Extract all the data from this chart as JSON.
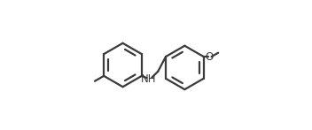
{
  "background_color": "#ffffff",
  "line_color": "#3a3a3a",
  "line_width": 1.6,
  "text_color": "#3a3a3a",
  "nh_fontsize": 8.5,
  "o_fontsize": 8.5,
  "figsize": [
    3.52,
    1.47
  ],
  "dpi": 100,
  "lcx": 0.245,
  "lcy": 0.5,
  "rcx": 0.72,
  "rcy": 0.48,
  "r": 0.168
}
